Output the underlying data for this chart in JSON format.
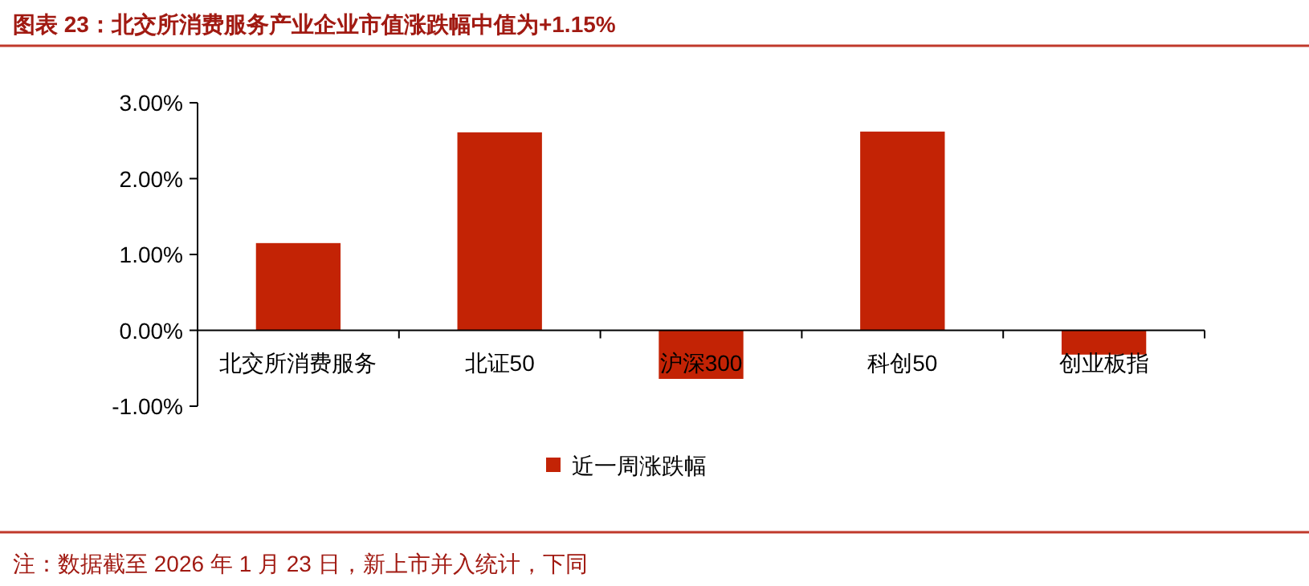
{
  "chart_data": {
    "type": "bar",
    "title": "图表 23：北交所消费服务产业企业市值涨跌幅中值为+1.15%",
    "categories": [
      "北交所消费服务",
      "北证50",
      "沪深300",
      "科创50",
      "创业板指"
    ],
    "series": [
      {
        "name": "近一周涨跌幅",
        "color": "#c32305",
        "values": [
          1.15,
          2.61,
          -0.64,
          2.62,
          -0.32
        ]
      }
    ],
    "ylim": [
      -1,
      3
    ],
    "yticks": [
      {
        "value": -1,
        "label": "-1.00%"
      },
      {
        "value": 0,
        "label": "0.00%"
      },
      {
        "value": 1,
        "label": "1.00%"
      },
      {
        "value": 2,
        "label": "2.00%"
      },
      {
        "value": 3,
        "label": "3.00%"
      }
    ],
    "grid": false,
    "legend": "bottom",
    "annotations": [
      "注：数据截至 2026 年 1 月 23 日，新上市并入统计，下同"
    ]
  }
}
